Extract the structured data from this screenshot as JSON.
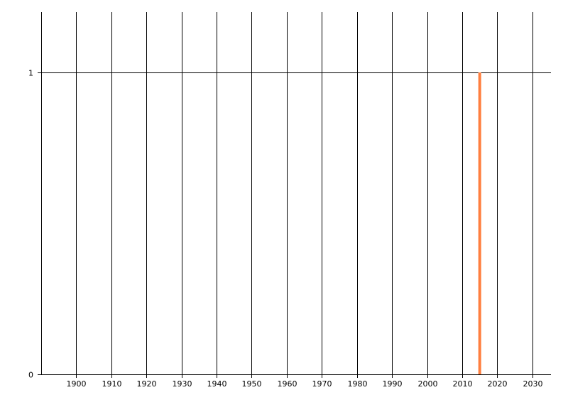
{
  "chart_data": {
    "type": "bar",
    "title": "",
    "xlabel": "",
    "ylabel": "",
    "xlim": [
      1890,
      2035.3
    ],
    "ylim": [
      0,
      1.2
    ],
    "x_ticks": [
      1900,
      1910,
      1920,
      1930,
      1940,
      1950,
      1960,
      1970,
      1980,
      1990,
      2000,
      2010,
      2020,
      2030
    ],
    "y_ticks": [
      0,
      1
    ],
    "grid": true,
    "series": [
      {
        "x": [
          2015
        ],
        "values": [
          1
        ],
        "color": "#FF7F3F"
      }
    ],
    "colors": {
      "grid": "#000000",
      "axis": "#000000",
      "text": "#000000"
    }
  }
}
